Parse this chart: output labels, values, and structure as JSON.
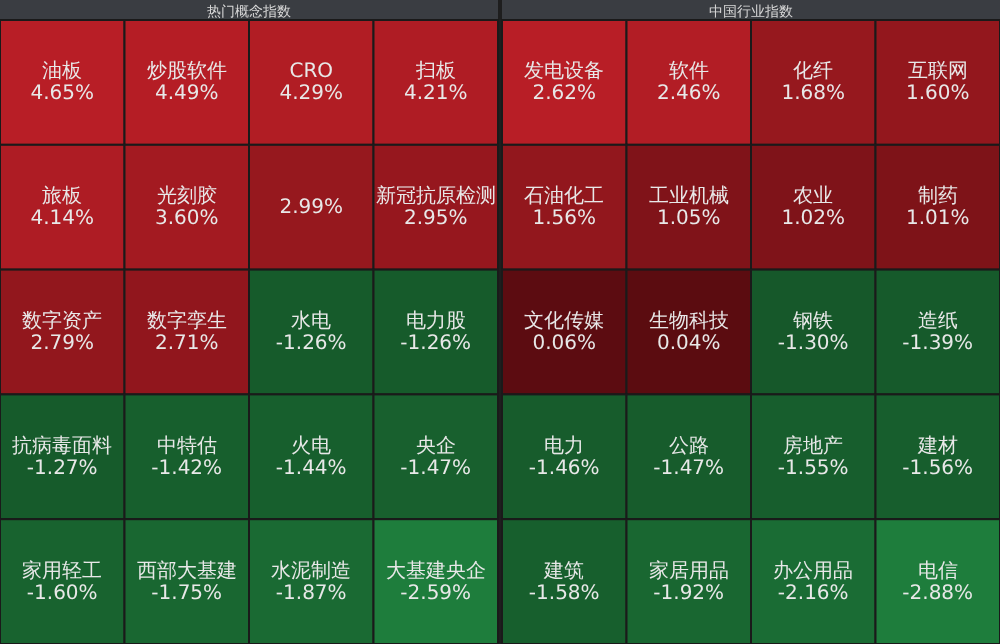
{
  "chart_data": [
    {
      "type": "other",
      "title": "热门概念指数",
      "categories": [
        "油板",
        "炒股软件",
        "CRO",
        "扫板",
        "旅板",
        "光刻胶",
        null,
        "新冠抗原检测",
        "数字资产",
        "数字孪生",
        "水电",
        "电力股",
        "抗病毒面料",
        "中特估",
        "火电",
        "央企",
        "家用轻工",
        "西部大基建",
        "水泥制造",
        "大基建央企"
      ],
      "values": [
        4.65,
        4.49,
        4.29,
        4.21,
        4.14,
        3.6,
        2.99,
        2.95,
        2.79,
        2.71,
        -1.26,
        -1.26,
        -1.27,
        -1.42,
        -1.44,
        -1.47,
        -1.6,
        -1.75,
        -1.87,
        -2.59
      ],
      "value_labels": [
        "4.65%",
        "4.49%",
        "4.29%",
        "4.21%",
        "4.14%",
        "3.60%",
        "2.99%",
        "2.95%",
        "2.79%",
        "2.71%",
        "-1.26%",
        "-1.26%",
        "-1.27%",
        "-1.42%",
        "-1.44%",
        "-1.47%",
        "-1.60%",
        "-1.75%",
        "-1.87%",
        "-2.59%"
      ]
    },
    {
      "type": "other",
      "title": "中国行业指数",
      "categories": [
        "发电设备",
        "软件",
        "化纤",
        "互联网",
        "石油化工",
        "工业机械",
        "农业",
        "制药",
        "文化传媒",
        "生物科技",
        "钢铁",
        "造纸",
        "电力",
        "公路",
        "房地产",
        "建材",
        "建筑",
        "家居用品",
        "办公用品",
        "电信"
      ],
      "values": [
        2.62,
        2.46,
        1.68,
        1.6,
        1.56,
        1.05,
        1.02,
        1.01,
        0.06,
        0.04,
        -1.3,
        -1.39,
        -1.46,
        -1.47,
        -1.55,
        -1.56,
        -1.58,
        -1.92,
        -2.16,
        -2.88
      ],
      "value_labels": [
        "2.62%",
        "2.46%",
        "1.68%",
        "1.60%",
        "1.56%",
        "1.05%",
        "1.02%",
        "1.01%",
        "0.06%",
        "0.04%",
        "-1.30%",
        "-1.39%",
        "-1.46%",
        "-1.47%",
        "-1.55%",
        "-1.56%",
        "-1.58%",
        "-1.92%",
        "-2.16%",
        "-2.88%"
      ]
    }
  ]
}
